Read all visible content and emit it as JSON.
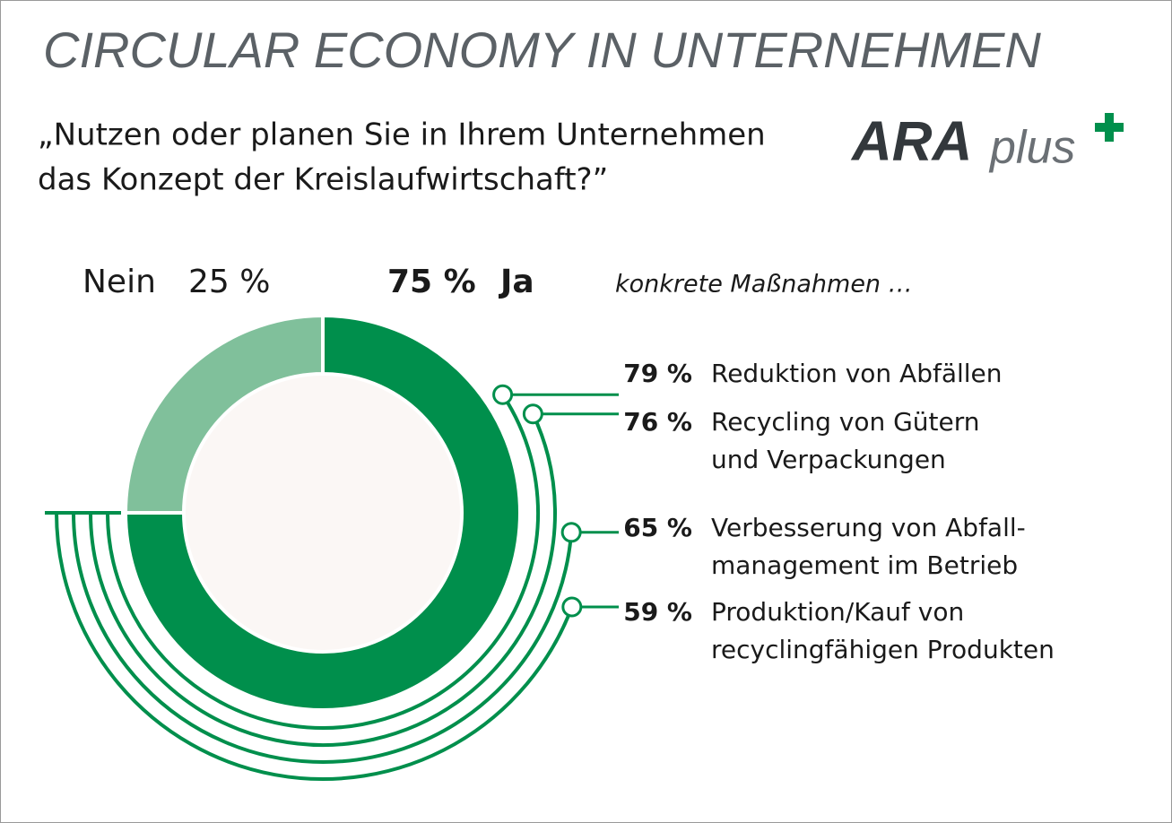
{
  "header": {
    "title": "CIRCULAR ECONOMY IN UNTERNEHMEN",
    "question": [
      "„Nutzen oder planen Sie in Ihrem Unternehmen",
      "das Konzept der Kreislaufwirtschaft?”"
    ],
    "logo": {
      "main": "ARA",
      "suffix": "plus"
    }
  },
  "chart_data": {
    "type": "donut",
    "categories": [
      "Nein",
      "Ja"
    ],
    "values": [
      25,
      75
    ],
    "value_labels": [
      "25 %",
      "75 %"
    ],
    "colors": [
      "#80c09b",
      "#008f4c"
    ],
    "subtitle": "konkrete Maßnahmen …",
    "measures": {
      "color": "#008f4c",
      "categories": [
        [
          "Reduktion von Abfällen"
        ],
        [
          "Recycling von Gütern",
          "und Verpackungen"
        ],
        [
          "Verbesserung von Abfall-",
          "management im Betrieb"
        ],
        [
          "Produktion/Kauf von",
          "recyclingfähigen Produkten"
        ]
      ],
      "values": [
        79,
        76,
        65,
        59
      ],
      "value_labels": [
        "79 %",
        "76 %",
        "65 %",
        "59 %"
      ]
    }
  }
}
